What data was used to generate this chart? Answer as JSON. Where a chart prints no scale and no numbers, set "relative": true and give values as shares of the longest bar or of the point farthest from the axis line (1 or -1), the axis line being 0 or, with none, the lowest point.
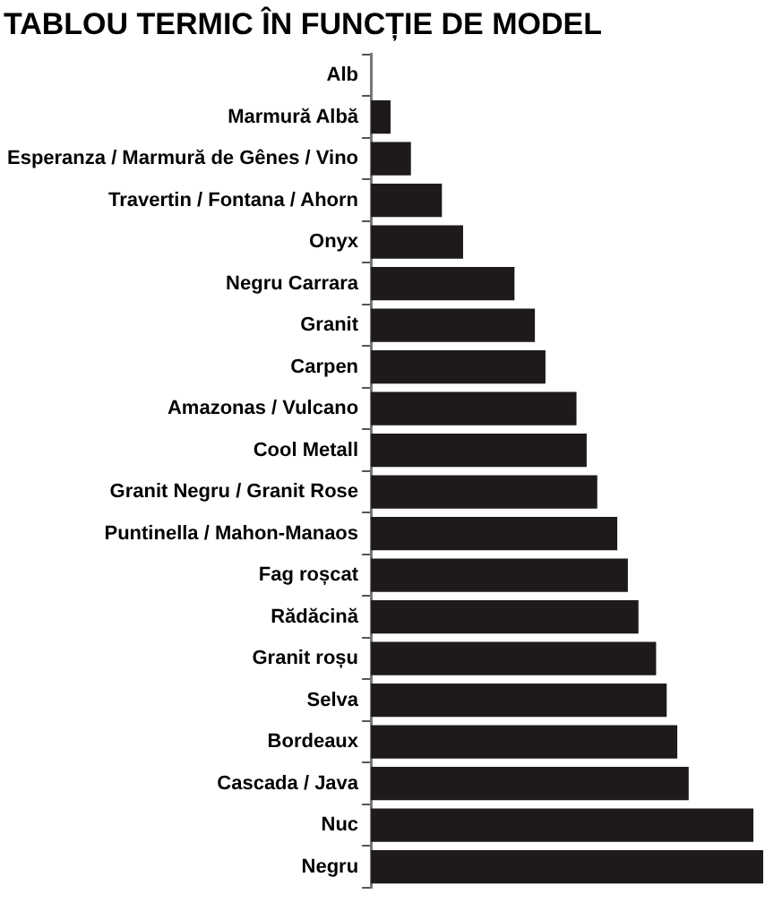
{
  "chart_data": {
    "type": "bar",
    "orientation": "horizontal",
    "relative": true,
    "title": "TABLOU TERMIC ÎN FUNCȚIE DE MODEL",
    "categories": [
      "Alb",
      "Marmură Albă",
      "Esperanza / Marmură de Gênes / Vino",
      "Travertin / Fontana / Ahorn",
      "Onyx",
      "Negru Carrara",
      "Granit",
      "Carpen",
      "Amazonas / Vulcano",
      "Cool Metall",
      "Granit Negru / Granit Rose",
      "Puntinella / Mahon-Manaos",
      "Fag roșcat",
      "Rădăcină",
      "Granit roșu",
      "Selva",
      "Bordeaux",
      "Cascada / Java",
      "Nuc",
      "Negru"
    ],
    "values": [
      0,
      0.05,
      0.102,
      0.181,
      0.235,
      0.366,
      0.418,
      0.445,
      0.524,
      0.55,
      0.577,
      0.628,
      0.655,
      0.682,
      0.727,
      0.754,
      0.781,
      0.81,
      0.975,
      1
    ],
    "color": "#1e1a19",
    "grid": false,
    "legend": false
  }
}
